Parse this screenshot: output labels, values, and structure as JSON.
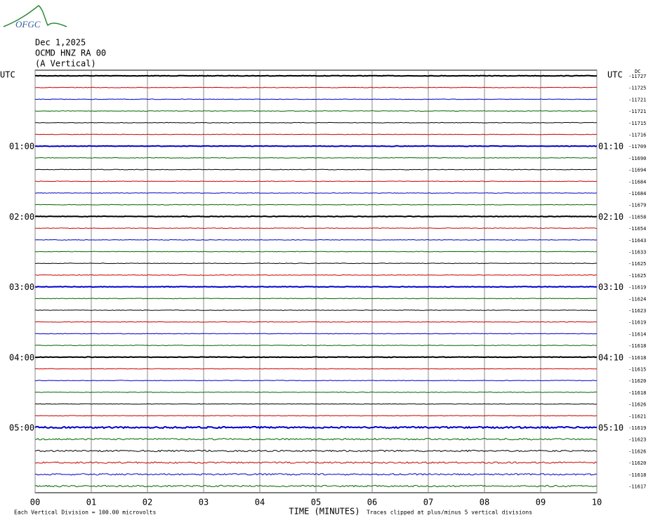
{
  "header": {
    "logo": "OFGC",
    "date": "Dec 1,2025",
    "station": "OCMD HNZ RA 00",
    "component": "(A Vertical)",
    "left_unit": "UTC",
    "right_unit": "UTC",
    "corner_mark": "DC"
  },
  "left_time_labels": [
    "01:00",
    "02:00",
    "03:00",
    "04:00",
    "05:00"
  ],
  "right_time_labels": [
    "01:10",
    "02:10",
    "03:10",
    "04:10",
    "05:10"
  ],
  "trace_colors": [
    "#000000",
    "#cc0000",
    "#0000cc",
    "#006600"
  ],
  "trace_offsets": [
    -11727,
    -11725,
    -11721,
    -11721,
    -11715,
    -11716,
    -11709,
    -11690,
    -11694,
    -11684,
    -11684,
    -11679,
    -11658,
    -11654,
    -11643,
    -11633,
    -11625,
    -11625,
    -11619,
    -11624,
    -11623,
    -11619,
    -11614,
    -11618,
    -11618,
    -11615,
    -11620,
    -11618,
    -11626,
    -11621,
    -11619,
    -11623,
    -11626,
    -11620,
    -11618,
    -11617
  ],
  "x_ticks": [
    "00",
    "01",
    "02",
    "03",
    "04",
    "05",
    "06",
    "07",
    "08",
    "09",
    "10"
  ],
  "x_label": "TIME (MINUTES)",
  "footer_left": "Each Vertical Division =  100.00 microvolts",
  "footer_right": "Traces clipped at plus/minus 5 vertical divisions"
}
